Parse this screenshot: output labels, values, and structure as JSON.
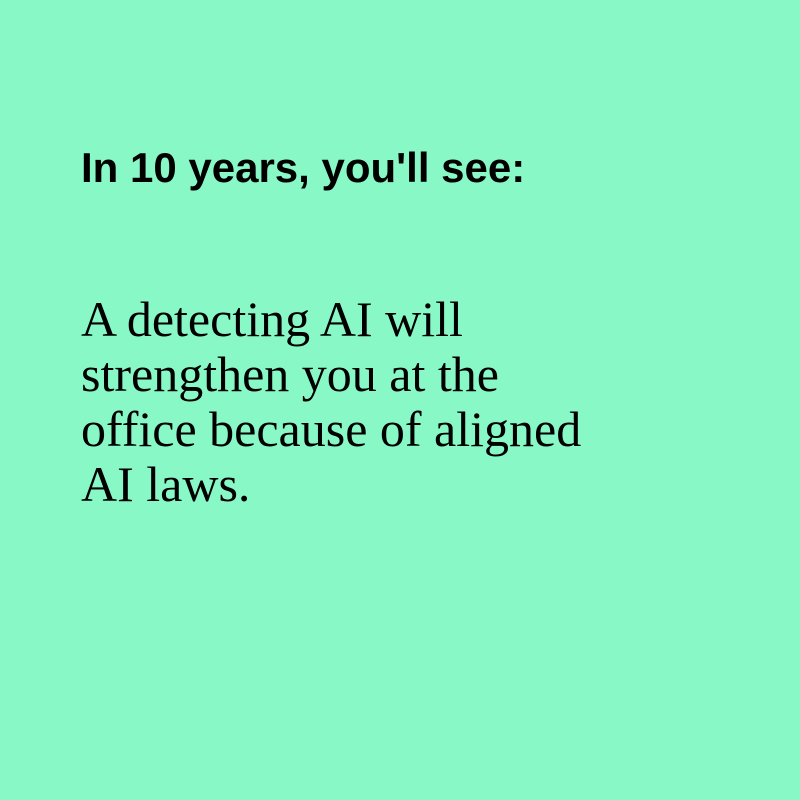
{
  "background_color": "#88f8c6",
  "text_color": "#000000",
  "heading": "In 10 years, you'll see:",
  "body_lines": [
    "A detecting AI will",
    "strengthen you at the",
    "office because of aligned",
    "AI laws."
  ]
}
